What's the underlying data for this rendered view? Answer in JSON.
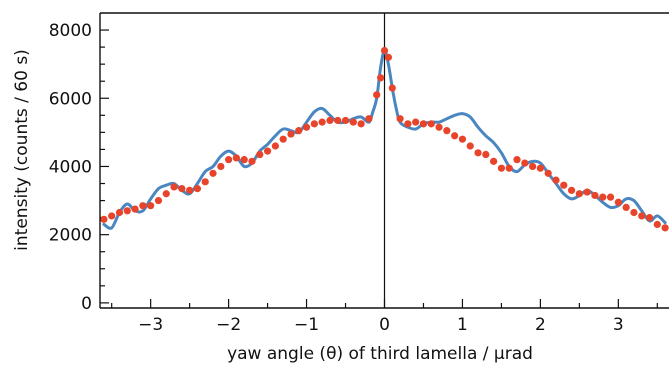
{
  "chart_data": {
    "type": "scatter",
    "title": "",
    "xlabel": "yaw angle (θ) of third lamella / µrad",
    "ylabel": "intensity (counts / 60 s)",
    "xlim": [
      -3.65,
      3.65
    ],
    "ylim": [
      -150,
      8500
    ],
    "x_ticks": [
      -3,
      -2,
      -1,
      0,
      1,
      2,
      3
    ],
    "x_tick_labels": [
      "−3",
      "−2",
      "−1",
      "0",
      "1",
      "2",
      "3"
    ],
    "y_ticks": [
      0,
      2000,
      4000,
      6000,
      8000
    ],
    "y_tick_labels": [
      "0",
      "2000",
      "4000",
      "6000",
      "8000"
    ],
    "grid": false,
    "vline_x": 0,
    "colors": {
      "points": "#e8432b",
      "curve": "#4a86c0",
      "axes": "#111111"
    },
    "series": [
      {
        "kind": "points",
        "x": [
          -3.6,
          -3.5,
          -3.4,
          -3.3,
          -3.2,
          -3.1,
          -3.0,
          -2.9,
          -2.8,
          -2.7,
          -2.6,
          -2.5,
          -2.4,
          -2.3,
          -2.2,
          -2.1,
          -2.0,
          -1.9,
          -1.8,
          -1.7,
          -1.6,
          -1.5,
          -1.4,
          -1.3,
          -1.2,
          -1.1,
          -1.0,
          -0.9,
          -0.8,
          -0.7,
          -0.6,
          -0.5,
          -0.4,
          -0.3,
          -0.2,
          -0.1,
          -0.05,
          0.0,
          0.05,
          0.1,
          0.2,
          0.3,
          0.4,
          0.5,
          0.6,
          0.7,
          0.8,
          0.9,
          1.0,
          1.1,
          1.2,
          1.3,
          1.4,
          1.5,
          1.6,
          1.7,
          1.8,
          1.9,
          2.0,
          2.1,
          2.2,
          2.3,
          2.4,
          2.5,
          2.6,
          2.7,
          2.8,
          2.9,
          3.0,
          3.1,
          3.2,
          3.3,
          3.4,
          3.5,
          3.6
        ],
        "y": [
          2450,
          2550,
          2650,
          2700,
          2750,
          2850,
          2850,
          3000,
          3200,
          3400,
          3350,
          3300,
          3350,
          3550,
          3800,
          4000,
          4200,
          4250,
          4200,
          4150,
          4350,
          4450,
          4600,
          4800,
          4950,
          5050,
          5150,
          5250,
          5300,
          5350,
          5350,
          5350,
          5300,
          5250,
          5400,
          6100,
          6600,
          7400,
          7200,
          6300,
          5400,
          5250,
          5300,
          5250,
          5250,
          5150,
          5050,
          4900,
          4800,
          4600,
          4400,
          4350,
          4150,
          3950,
          3950,
          4200,
          4100,
          4000,
          3950,
          3800,
          3600,
          3450,
          3300,
          3200,
          3250,
          3150,
          3100,
          3100,
          2950,
          2800,
          2650,
          2550,
          2500,
          2300,
          2200
        ]
      },
      {
        "kind": "line",
        "x": [
          -3.6,
          -3.5,
          -3.4,
          -3.3,
          -3.2,
          -3.1,
          -3.0,
          -2.9,
          -2.8,
          -2.7,
          -2.6,
          -2.5,
          -2.4,
          -2.3,
          -2.2,
          -2.1,
          -2.0,
          -1.9,
          -1.8,
          -1.7,
          -1.6,
          -1.5,
          -1.4,
          -1.3,
          -1.2,
          -1.1,
          -1.0,
          -0.9,
          -0.8,
          -0.7,
          -0.6,
          -0.5,
          -0.4,
          -0.3,
          -0.2,
          -0.15,
          -0.1,
          -0.05,
          0.0,
          0.05,
          0.1,
          0.15,
          0.2,
          0.3,
          0.4,
          0.5,
          0.6,
          0.7,
          0.8,
          0.9,
          1.0,
          1.1,
          1.2,
          1.3,
          1.4,
          1.5,
          1.6,
          1.7,
          1.8,
          1.9,
          2.0,
          2.1,
          2.2,
          2.3,
          2.4,
          2.5,
          2.6,
          2.7,
          2.8,
          2.9,
          3.0,
          3.1,
          3.2,
          3.3,
          3.4,
          3.5,
          3.6
        ],
        "y": [
          2300,
          2200,
          2650,
          2900,
          2700,
          2700,
          3050,
          3350,
          3450,
          3500,
          3300,
          3200,
          3500,
          3850,
          4000,
          4300,
          4450,
          4300,
          4000,
          4100,
          4450,
          4650,
          4900,
          5100,
          5050,
          5000,
          5300,
          5600,
          5700,
          5500,
          5300,
          5300,
          5400,
          5450,
          5300,
          5600,
          6000,
          6900,
          7400,
          7000,
          6300,
          5700,
          5300,
          5150,
          5100,
          5250,
          5300,
          5300,
          5400,
          5500,
          5550,
          5450,
          5150,
          4900,
          4700,
          4400,
          4000,
          3850,
          4050,
          4150,
          4100,
          3800,
          3500,
          3200,
          3050,
          3150,
          3300,
          3150,
          2950,
          2800,
          2850,
          3050,
          3000,
          2700,
          2400,
          2550,
          2350
        ]
      }
    ]
  }
}
